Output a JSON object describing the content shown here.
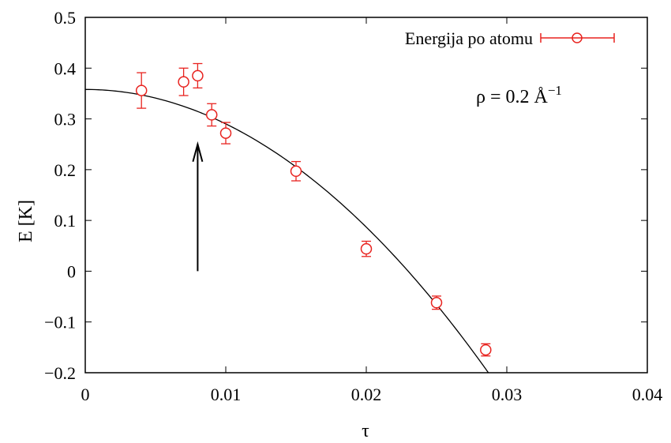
{
  "chart_data": {
    "type": "scatter",
    "xlabel": "τ",
    "ylabel": "E [K]",
    "xlim": [
      0,
      0.04
    ],
    "ylim": [
      -0.2,
      0.5
    ],
    "x_ticks": [
      0,
      0.01,
      0.02,
      0.03,
      0.04
    ],
    "x_tick_labels": [
      "0",
      "0.01",
      "0.02",
      "0.03",
      "0.04"
    ],
    "y_ticks": [
      -0.2,
      -0.1,
      0,
      0.1,
      0.2,
      0.3,
      0.4,
      0.5
    ],
    "y_tick_labels": [
      "−0.2",
      "−0.1",
      "0",
      "0.1",
      "0.2",
      "0.3",
      "0.4",
      "0.5"
    ],
    "grid": false,
    "legend_position": "top-right",
    "series": [
      {
        "name": "Energija po atomu",
        "color": "#e8231f",
        "x": [
          0.004,
          0.007,
          0.008,
          0.009,
          0.01,
          0.015,
          0.02,
          0.025,
          0.0285
        ],
        "y": [
          0.356,
          0.373,
          0.385,
          0.308,
          0.272,
          0.197,
          0.044,
          -0.062,
          -0.155
        ],
        "err": [
          0.035,
          0.027,
          0.024,
          0.022,
          0.021,
          0.019,
          0.015,
          0.013,
          0.012
        ]
      }
    ],
    "fit_curve": {
      "color": "#000000",
      "form": "quadratic",
      "a": 0.358,
      "c": -678
    },
    "annotations": {
      "density_prefix": "ρ = 0.2 Å",
      "density_exponent": "−1",
      "arrow": {
        "x": 0.008,
        "y_from": 0.0,
        "y_to": 0.25
      }
    }
  }
}
